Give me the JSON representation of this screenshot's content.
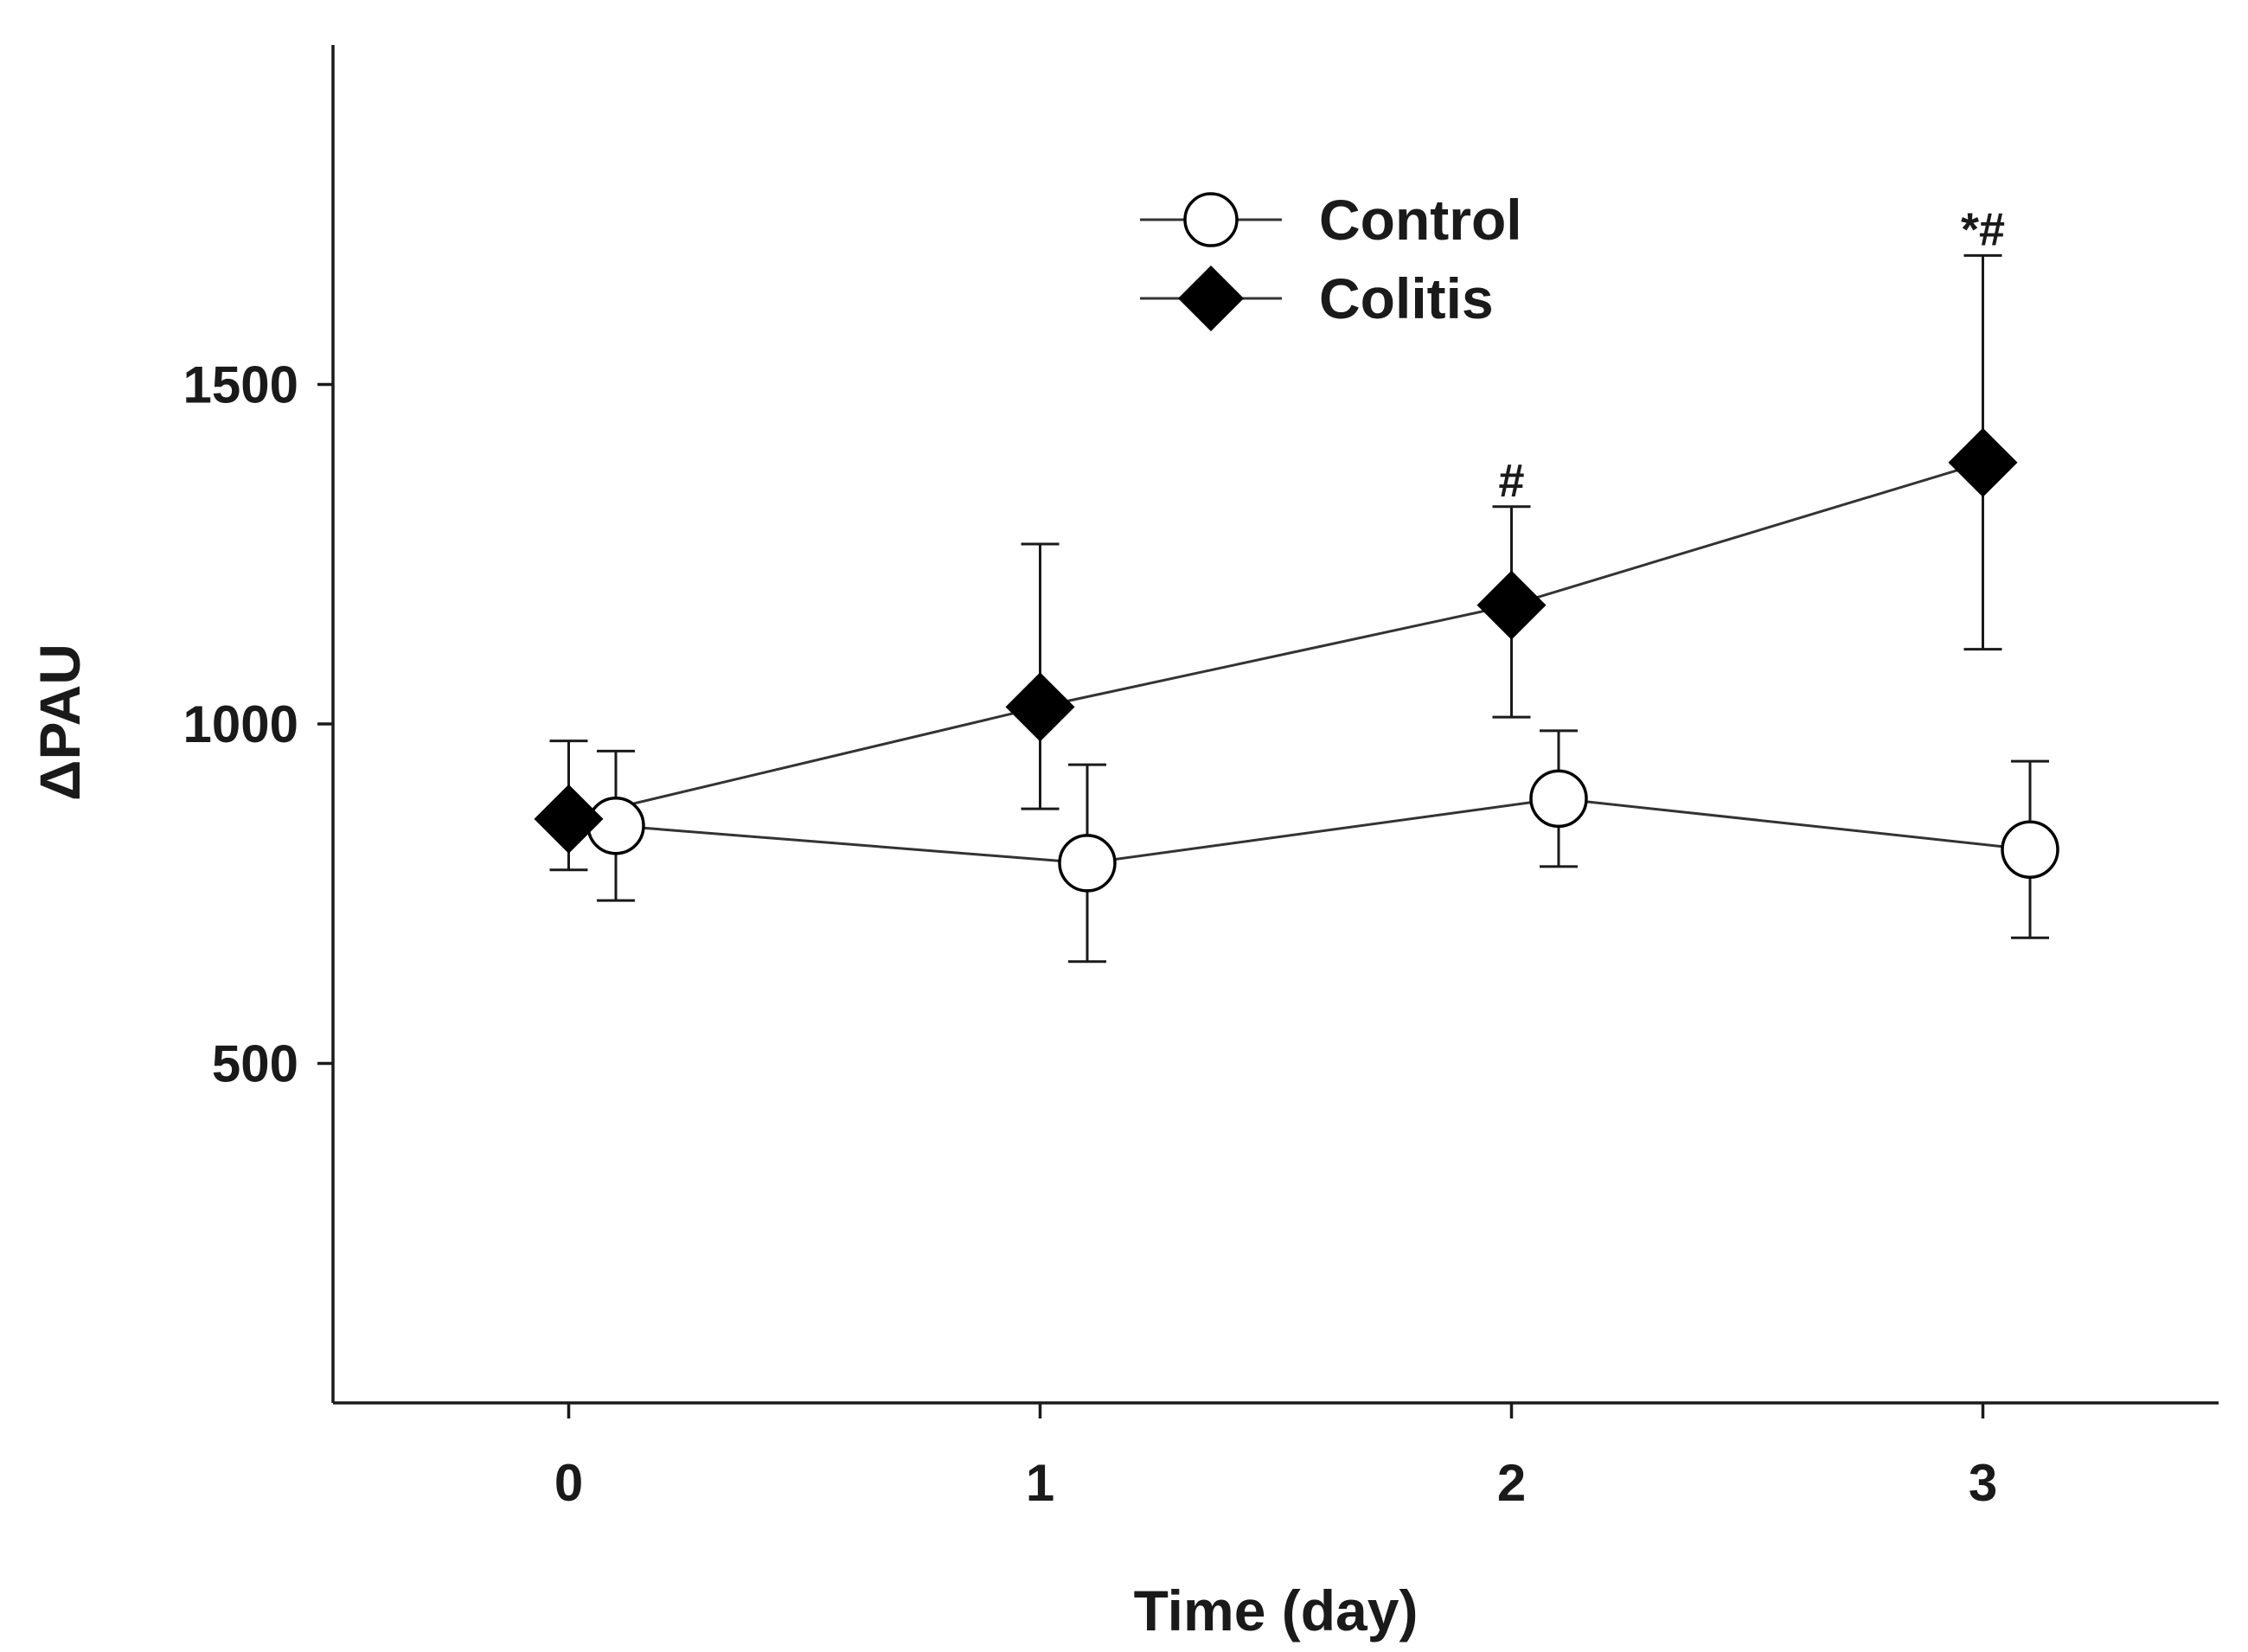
{
  "chart_data": {
    "type": "line",
    "title": "",
    "xlabel": "Time (day)",
    "ylabel": "ΔPAU",
    "xlim": [
      -0.5,
      3.5
    ],
    "ylim": [
      0,
      2000
    ],
    "x_ticks": [
      0,
      1,
      2,
      3
    ],
    "y_ticks": [
      500,
      1000,
      1500
    ],
    "x_tick_labels": [
      "0",
      "1",
      "2",
      "3"
    ],
    "y_tick_labels": [
      "500",
      "1000",
      "1500"
    ],
    "grid": false,
    "legend_position": "top-center",
    "series": [
      {
        "name": "Control",
        "marker": "open-circle",
        "color": "#000000",
        "x": [
          0.1,
          1.1,
          2.1,
          3.1
        ],
        "values": [
          850,
          795,
          890,
          815
        ],
        "error_upper": [
          110,
          145,
          100,
          130
        ],
        "error_lower": [
          110,
          145,
          100,
          130
        ]
      },
      {
        "name": "Colitis",
        "marker": "filled-diamond",
        "color": "#000000",
        "x": [
          0,
          1,
          2,
          3
        ],
        "values": [
          860,
          1025,
          1175,
          1385
        ],
        "error_upper": [
          115,
          240,
          145,
          305
        ],
        "error_lower": [
          75,
          150,
          165,
          275
        ]
      }
    ],
    "annotations": [
      {
        "text": "#",
        "x": 2,
        "y": 1335,
        "series": "Colitis"
      },
      {
        "text": "*#",
        "x": 3,
        "y": 1705,
        "series": "Colitis"
      }
    ]
  }
}
